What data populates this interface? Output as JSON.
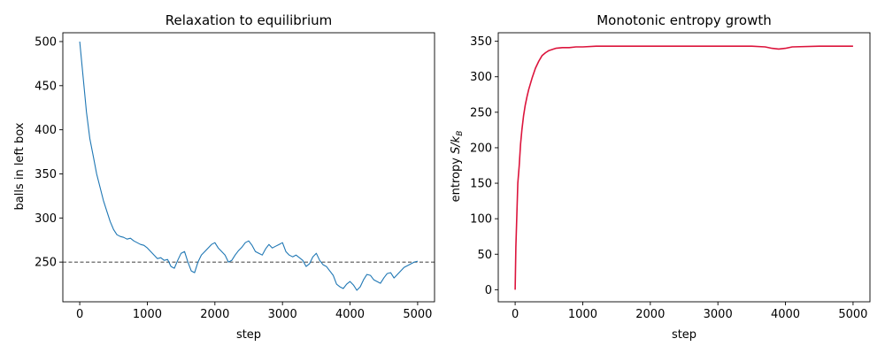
{
  "chart_data": [
    {
      "type": "line",
      "title": "Relaxation to equilibrium",
      "xlabel": "step",
      "ylabel": "balls in left box",
      "xlim": [
        -250,
        5250
      ],
      "ylim": [
        205,
        510
      ],
      "xticks": [
        0,
        1000,
        2000,
        3000,
        4000,
        5000
      ],
      "yticks": [
        250,
        300,
        350,
        400,
        450,
        500
      ],
      "grid": false,
      "reference_line": {
        "y": 250,
        "style": "dashed",
        "color": "#555555"
      },
      "series": [
        {
          "color": "#1f77b4",
          "x": [
            0,
            50,
            100,
            150,
            200,
            250,
            300,
            350,
            400,
            450,
            500,
            550,
            600,
            650,
            700,
            750,
            800,
            850,
            900,
            950,
            1000,
            1050,
            1100,
            1150,
            1200,
            1250,
            1300,
            1350,
            1400,
            1450,
            1500,
            1550,
            1600,
            1650,
            1700,
            1750,
            1800,
            1850,
            1900,
            1950,
            2000,
            2050,
            2100,
            2150,
            2200,
            2250,
            2300,
            2350,
            2400,
            2450,
            2500,
            2550,
            2600,
            2650,
            2700,
            2750,
            2800,
            2850,
            2900,
            2950,
            3000,
            3050,
            3100,
            3150,
            3200,
            3250,
            3300,
            3350,
            3400,
            3450,
            3500,
            3550,
            3600,
            3650,
            3700,
            3750,
            3800,
            3850,
            3900,
            3950,
            4000,
            4050,
            4100,
            4150,
            4200,
            4250,
            4300,
            4350,
            4400,
            4450,
            4500,
            4550,
            4600,
            4650,
            4700,
            4750,
            4800,
            4850,
            4900,
            4950,
            5000
          ],
          "y": [
            500,
            460,
            420,
            390,
            370,
            350,
            335,
            320,
            308,
            296,
            287,
            281,
            279,
            278,
            276,
            277,
            274,
            272,
            270,
            269,
            266,
            262,
            258,
            254,
            255,
            252,
            253,
            245,
            243,
            252,
            260,
            262,
            250,
            240,
            238,
            250,
            258,
            262,
            266,
            270,
            272,
            266,
            262,
            258,
            250,
            252,
            258,
            263,
            267,
            272,
            274,
            269,
            262,
            260,
            258,
            265,
            270,
            266,
            268,
            270,
            272,
            262,
            258,
            256,
            258,
            255,
            252,
            245,
            248,
            256,
            260,
            252,
            247,
            245,
            240,
            235,
            225,
            222,
            220,
            225,
            228,
            224,
            218,
            222,
            230,
            236,
            235,
            230,
            228,
            226,
            232,
            237,
            238,
            232,
            236,
            240,
            244,
            246,
            248,
            250,
            251
          ]
        }
      ]
    },
    {
      "type": "line",
      "title": "Monotonic entropy growth",
      "xlabel": "step",
      "ylabel": "entropy S/k_B",
      "ylabel_parts": {
        "prefix": "entropy ",
        "main": "S/k",
        "sub": "B"
      },
      "xlim": [
        -250,
        5250
      ],
      "ylim": [
        -17,
        362
      ],
      "xticks": [
        0,
        1000,
        2000,
        3000,
        4000,
        5000
      ],
      "yticks": [
        0,
        50,
        100,
        150,
        200,
        250,
        300,
        350
      ],
      "grid": false,
      "series": [
        {
          "color": "#dc143c",
          "x": [
            0,
            10,
            25,
            40,
            60,
            80,
            100,
            125,
            150,
            175,
            200,
            250,
            300,
            350,
            400,
            450,
            500,
            600,
            700,
            800,
            900,
            1000,
            1200,
            1500,
            2000,
            2500,
            3000,
            3500,
            3700,
            3800,
            3900,
            4000,
            4100,
            4500,
            5000
          ],
          "y": [
            0,
            60,
            105,
            150,
            175,
            205,
            225,
            245,
            260,
            272,
            282,
            298,
            312,
            322,
            330,
            334,
            337,
            340,
            341,
            341,
            342,
            342,
            343,
            343,
            343,
            343,
            343,
            343,
            342,
            340,
            339,
            340,
            342,
            343,
            343
          ]
        }
      ]
    }
  ]
}
